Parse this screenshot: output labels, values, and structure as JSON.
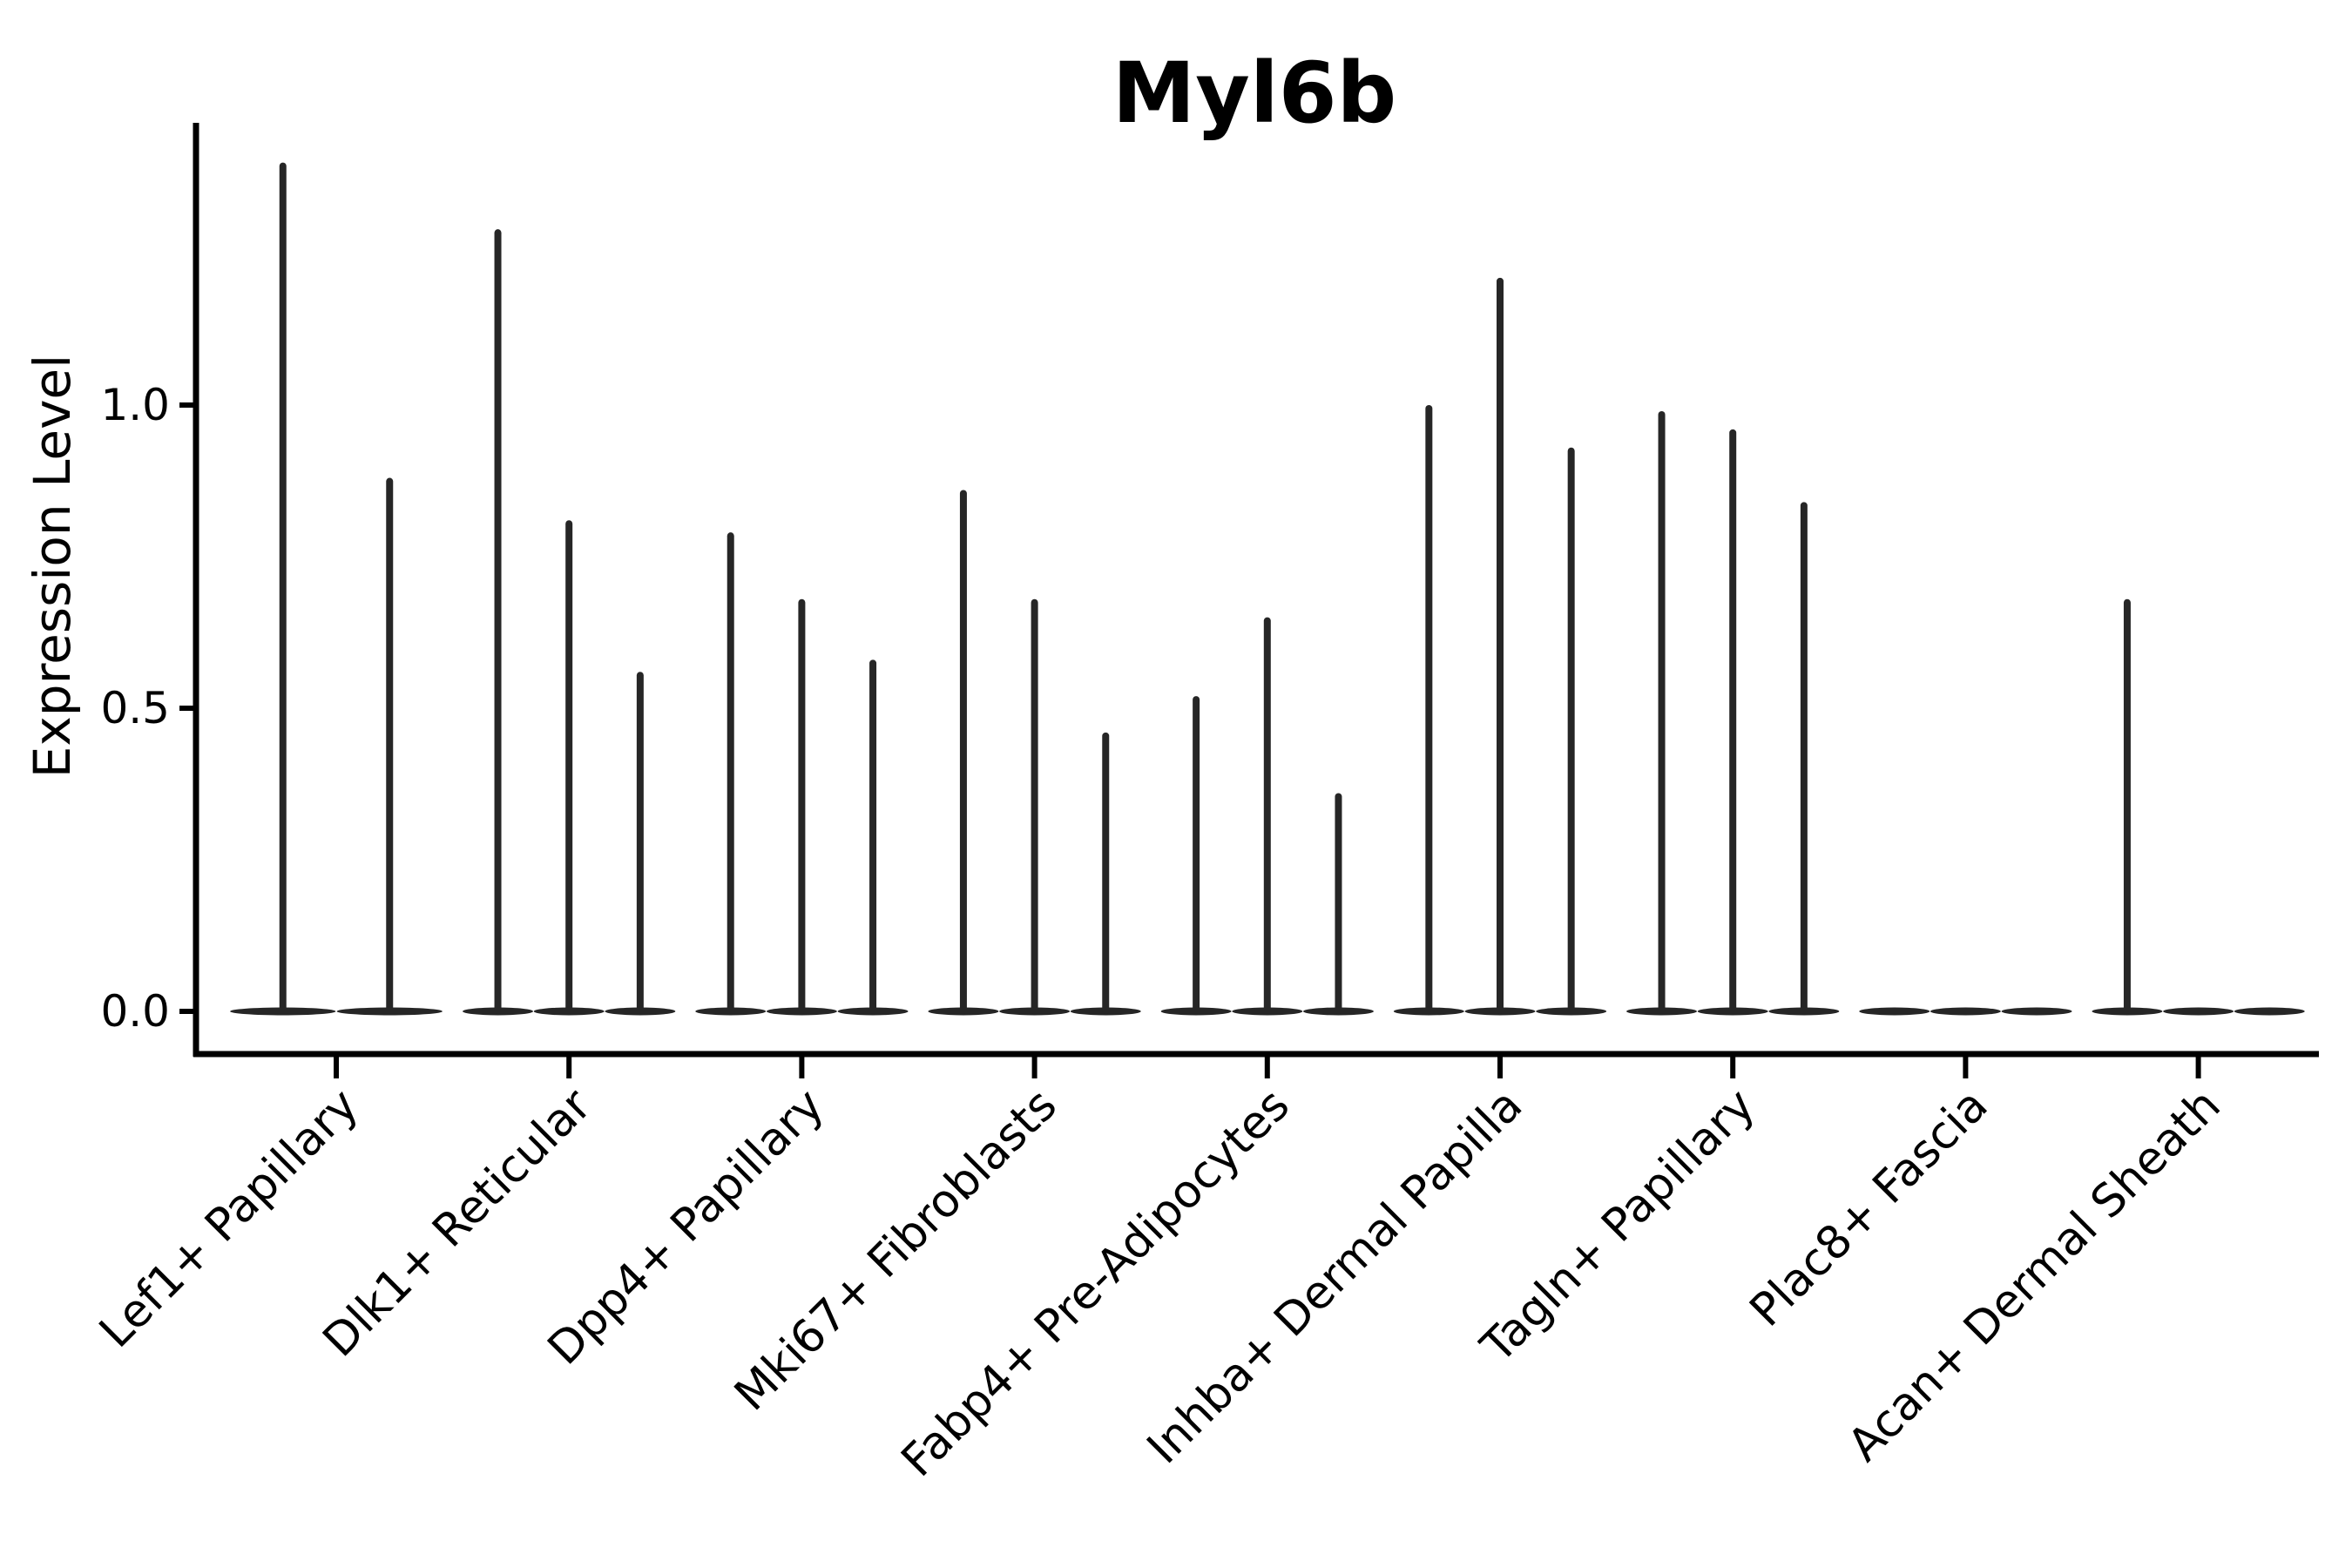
{
  "figure": {
    "title": "Myl6b",
    "ylabel": "Expression Level"
  },
  "chart_data": {
    "type": "violin",
    "title": "Myl6b",
    "xlabel": "",
    "ylabel": "Expression Level",
    "yticks": [
      "0.0",
      "0.5",
      "1.0"
    ],
    "ytick_values": [
      0.0,
      0.5,
      1.0
    ],
    "ylim": [
      -0.07,
      1.465
    ],
    "grid": false,
    "legend": "none",
    "violin_color": "#262626",
    "axis_color": "#000000",
    "categories": [
      "Lef1+ Papillary",
      "Dlk1+ Reticular",
      "Dpp4+ Papillary",
      "Mki67+ Fibroblasts",
      "Fabp4+ Pre-Adipocytes",
      "Inhba+ Dermal Papilla",
      "Tagln+ Papillary",
      "Plac8+ Fascia",
      "Acan+ Dermal Sheath"
    ],
    "series_note": "Each category shows thin violins collapsed at 0 with narrow spikes; values are the spike maxima (Expression Level). 0 = flat violin with no spike.",
    "violin_maxima": [
      [
        1.4,
        0.88
      ],
      [
        1.29,
        0.81,
        0.56
      ],
      [
        0.79,
        0.68,
        0.58
      ],
      [
        0.86,
        0.68,
        0.46
      ],
      [
        0.52,
        0.65,
        0.36
      ],
      [
        1.0,
        1.21,
        0.93
      ],
      [
        0.99,
        0.96,
        0.84
      ],
      [
        0,
        0,
        0
      ],
      [
        0.68,
        0,
        0
      ]
    ]
  }
}
